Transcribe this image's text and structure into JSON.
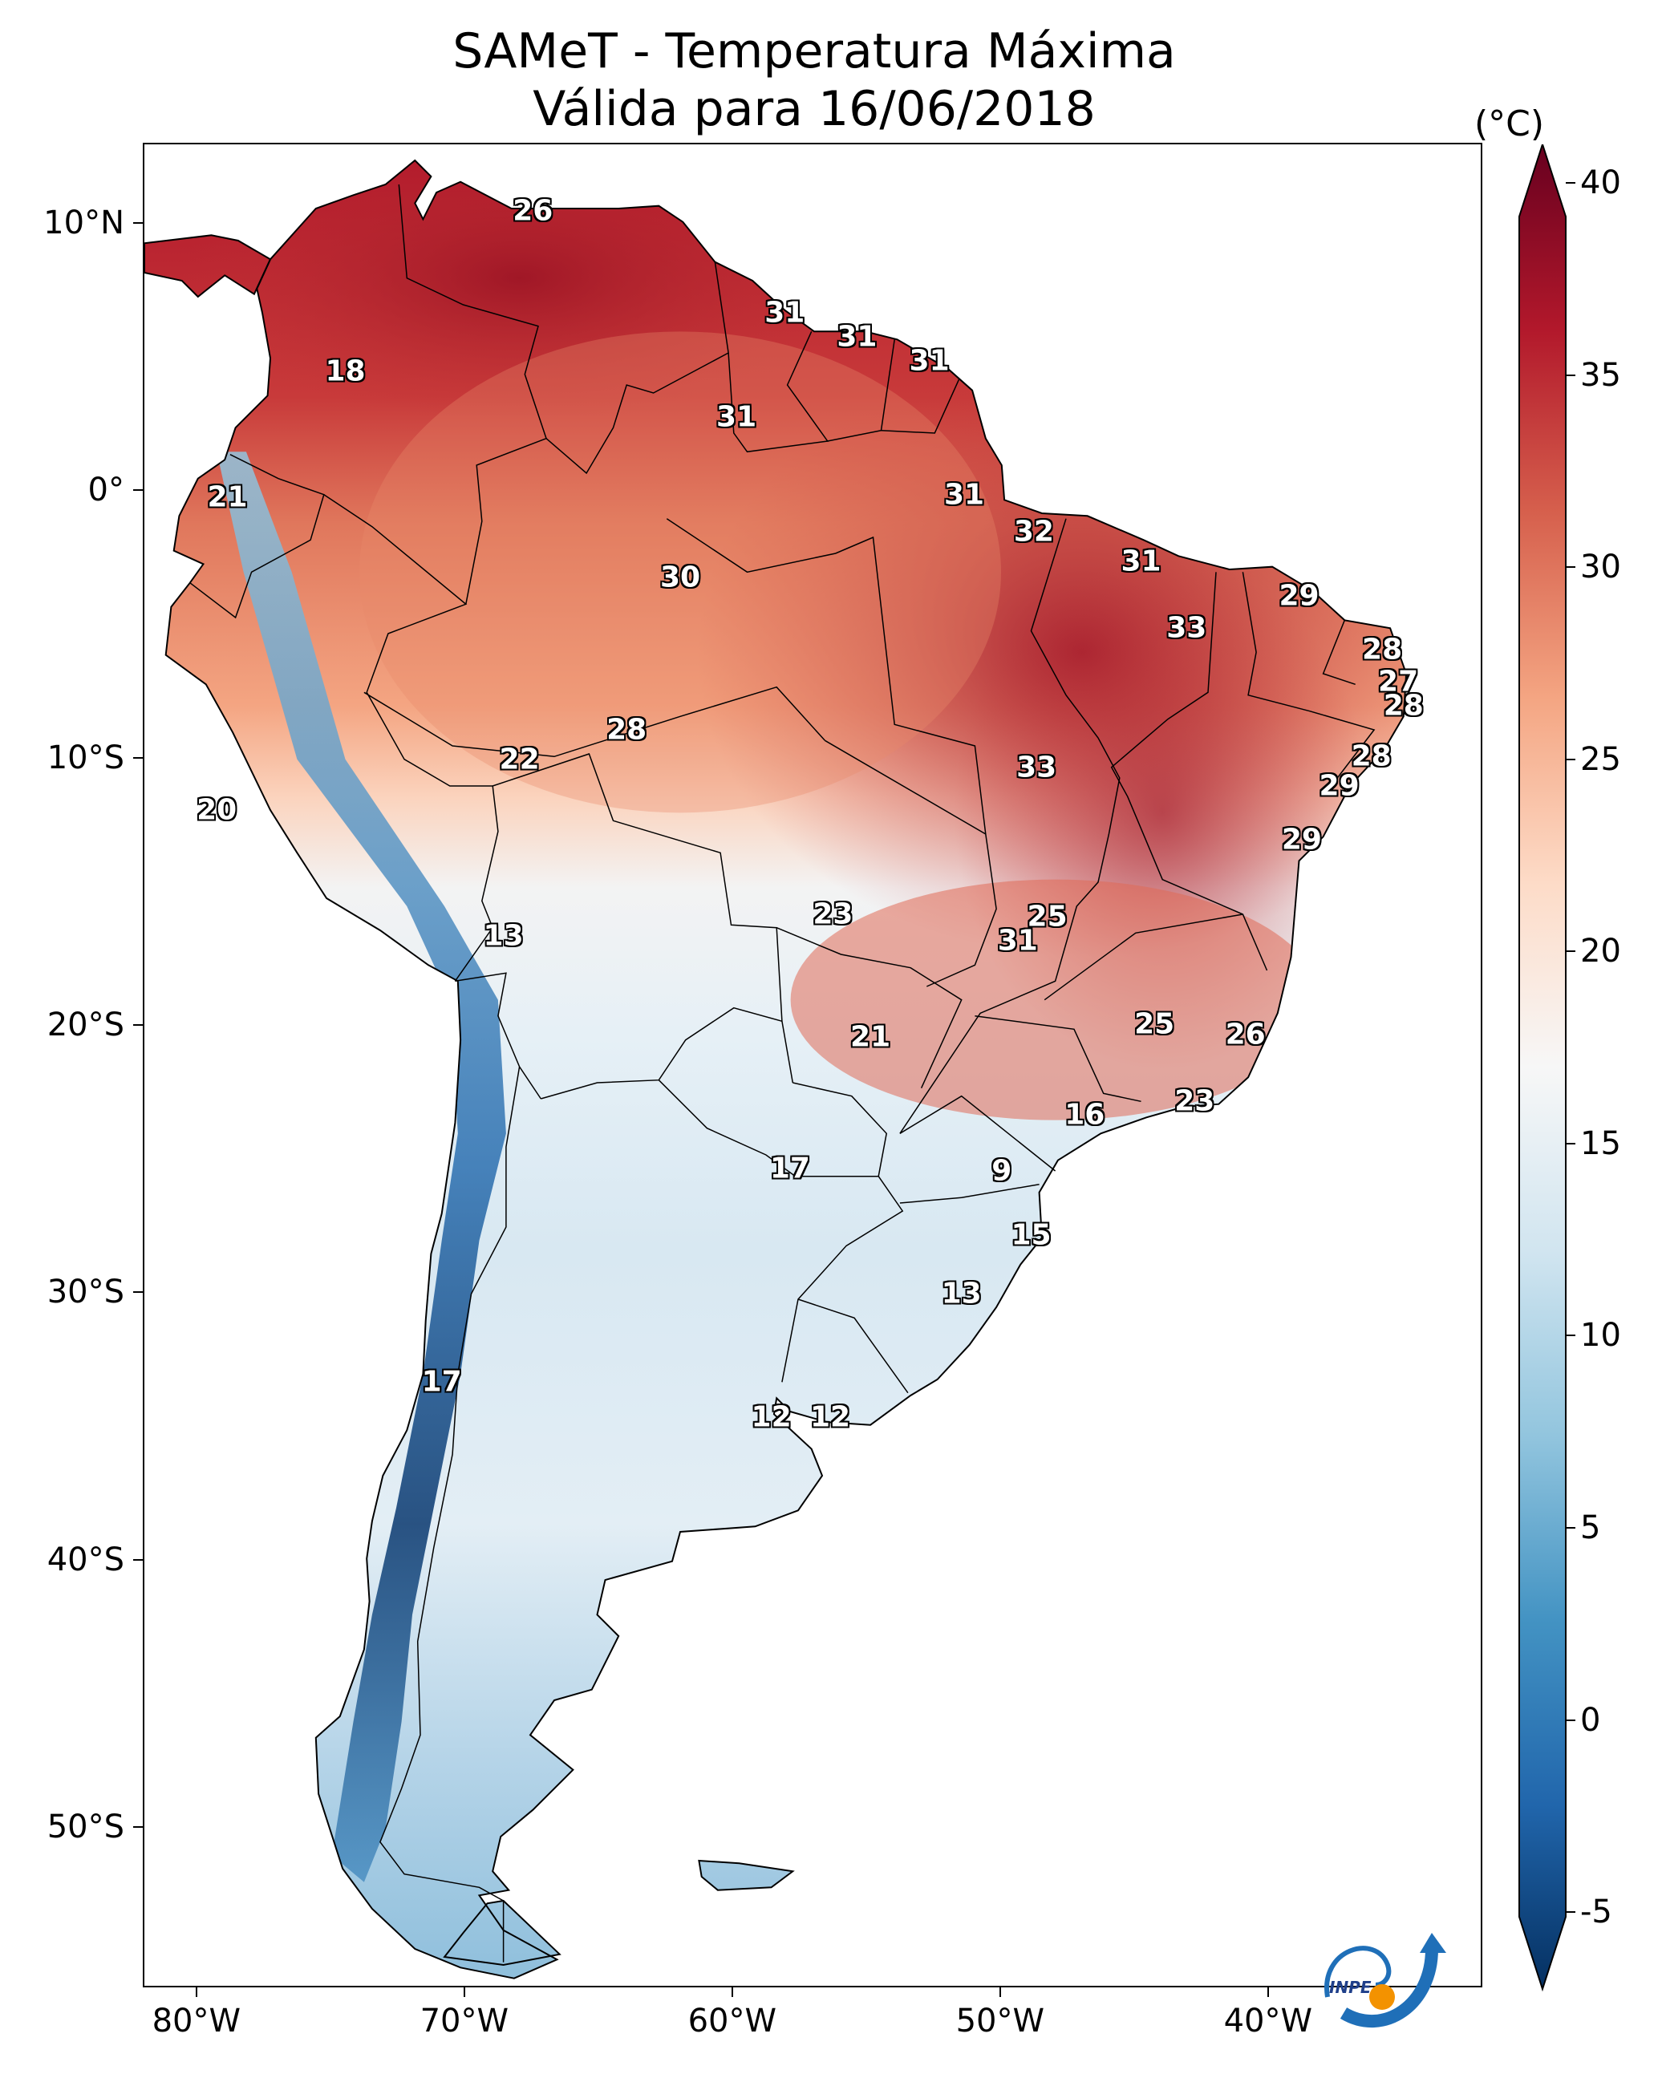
{
  "title": {
    "line1": "SAMeT - Temperatura Máxima",
    "line2": "Válida para 16/06/2018"
  },
  "axes": {
    "lat_labels": [
      "10°N",
      "0°",
      "10°S",
      "20°S",
      "30°S",
      "40°S",
      "50°S"
    ],
    "lon_labels": [
      "80°W",
      "70°W",
      "60°W",
      "50°W",
      "40°W"
    ],
    "lat_range": [
      -56,
      13
    ],
    "lon_range": [
      -82,
      -32
    ]
  },
  "colorbar": {
    "unit": "(°C)",
    "ticks": [
      "40",
      "35",
      "30",
      "25",
      "20",
      "15",
      "10",
      "5",
      "0",
      "-5"
    ],
    "range": [
      -7,
      41
    ],
    "colors": [
      "#053061",
      "#2166ac",
      "#4393c3",
      "#92c5de",
      "#d1e5f0",
      "#f7f7f7",
      "#fddbc7",
      "#f4a582",
      "#d6604d",
      "#b2182b",
      "#67001f"
    ]
  },
  "chart_data": {
    "type": "map",
    "variable": "Temperatura Máxima",
    "unit": "°C",
    "point_labels": [
      {
        "value": "26",
        "lon": -67.5,
        "lat": 10.5
      },
      {
        "value": "18",
        "lon": -74.5,
        "lat": 4.5
      },
      {
        "value": "31",
        "lon": -58.1,
        "lat": 6.7
      },
      {
        "value": "31",
        "lon": -55.4,
        "lat": 5.8
      },
      {
        "value": "31",
        "lon": -52.7,
        "lat": 4.9
      },
      {
        "value": "31",
        "lon": -59.9,
        "lat": 2.8
      },
      {
        "value": "21",
        "lon": -78.9,
        "lat": -0.2
      },
      {
        "value": "31",
        "lon": -51.4,
        "lat": -0.1
      },
      {
        "value": "32",
        "lon": -48.8,
        "lat": -1.5
      },
      {
        "value": "30",
        "lon": -62.0,
        "lat": -3.2
      },
      {
        "value": "31",
        "lon": -44.8,
        "lat": -2.6
      },
      {
        "value": "29",
        "lon": -38.9,
        "lat": -3.9
      },
      {
        "value": "33",
        "lon": -43.1,
        "lat": -5.1
      },
      {
        "value": "28",
        "lon": -35.8,
        "lat": -5.9
      },
      {
        "value": "27",
        "lon": -35.2,
        "lat": -7.1
      },
      {
        "value": "28",
        "lon": -35.0,
        "lat": -8.0
      },
      {
        "value": "28",
        "lon": -64.0,
        "lat": -8.9
      },
      {
        "value": "33",
        "lon": -48.7,
        "lat": -10.3
      },
      {
        "value": "22",
        "lon": -68.0,
        "lat": -10.0
      },
      {
        "value": "28",
        "lon": -36.2,
        "lat": -9.9
      },
      {
        "value": "29",
        "lon": -37.4,
        "lat": -11.0
      },
      {
        "value": "20",
        "lon": -79.3,
        "lat": -11.9
      },
      {
        "value": "29",
        "lon": -38.8,
        "lat": -13.0
      },
      {
        "value": "23",
        "lon": -56.3,
        "lat": -15.8
      },
      {
        "value": "25",
        "lon": -48.3,
        "lat": -15.9
      },
      {
        "value": "31",
        "lon": -49.4,
        "lat": -16.8
      },
      {
        "value": "13",
        "lon": -68.6,
        "lat": -16.6
      },
      {
        "value": "25",
        "lon": -44.3,
        "lat": -19.9
      },
      {
        "value": "21",
        "lon": -54.9,
        "lat": -20.4
      },
      {
        "value": "26",
        "lon": -40.9,
        "lat": -20.3
      },
      {
        "value": "23",
        "lon": -42.8,
        "lat": -22.8
      },
      {
        "value": "16",
        "lon": -46.9,
        "lat": -23.3
      },
      {
        "value": "17",
        "lon": -57.9,
        "lat": -25.3
      },
      {
        "value": "9",
        "lon": -50.0,
        "lat": -25.4
      },
      {
        "value": "15",
        "lon": -48.9,
        "lat": -27.8
      },
      {
        "value": "13",
        "lon": -51.5,
        "lat": -30.0
      },
      {
        "value": "17",
        "lon": -70.9,
        "lat": -33.3
      },
      {
        "value": "12",
        "lon": -58.6,
        "lat": -34.6
      },
      {
        "value": "12",
        "lon": -56.4,
        "lat": -34.6
      }
    ]
  },
  "logo": {
    "text": "INPE"
  }
}
